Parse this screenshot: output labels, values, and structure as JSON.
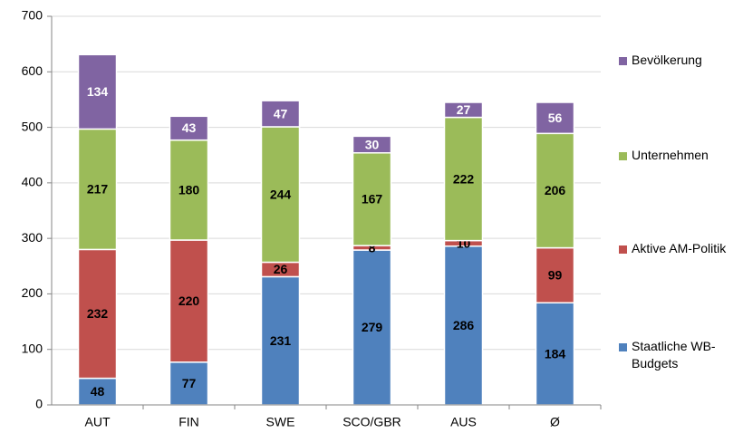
{
  "chart_data": {
    "type": "stacked_bar",
    "categories": [
      "AUT",
      "FIN",
      "SWE",
      "SCO/GBR",
      "AUS",
      "Ø"
    ],
    "series": [
      {
        "name": "Staatliche WB-Budgets",
        "color": "#4f81bd",
        "label_color": "#000000",
        "values": [
          48,
          77,
          231,
          279,
          286,
          184
        ]
      },
      {
        "name": "Aktive AM-Politik",
        "color": "#c0504d",
        "label_color": "#000000",
        "values": [
          232,
          220,
          26,
          8,
          10,
          99
        ]
      },
      {
        "name": "Unternehmen",
        "color": "#9bbb59",
        "label_color": "#000000",
        "values": [
          217,
          180,
          244,
          167,
          222,
          206
        ]
      },
      {
        "name": "Bevölkerung",
        "color": "#8064a2",
        "label_color": "#ffffff",
        "values": [
          134,
          43,
          47,
          30,
          27,
          56
        ]
      }
    ],
    "ylim": [
      0,
      700
    ],
    "yticks": [
      0,
      100,
      200,
      300,
      400,
      500,
      600,
      700
    ],
    "grid": true,
    "legend": "right"
  }
}
